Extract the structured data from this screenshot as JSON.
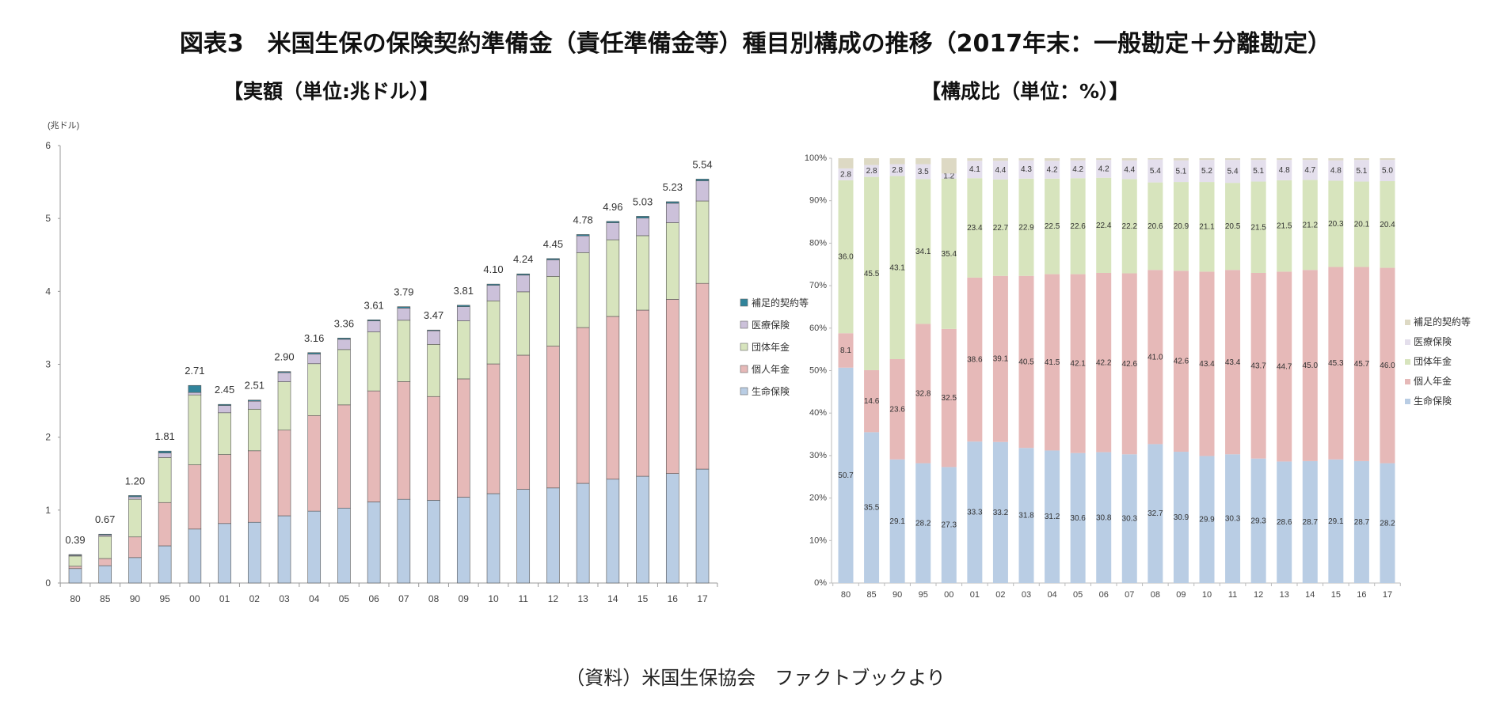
{
  "title": "図表3　米国生保の保険契約準備金（責任準備金等）種目別構成の推移（2017年末：一般勘定＋分離勘定）",
  "source": "（資料）米国生保協会　ファクトブックより",
  "chart_data": [
    {
      "type": "bar",
      "stacked": true,
      "title": "【実額（単位:兆ドル）】",
      "unit_label": "(兆ドル)",
      "xlabel": "",
      "ylabel": "兆ドル",
      "ylim": [
        0,
        6
      ],
      "yticks": [
        "0",
        "1",
        "2",
        "3",
        "4",
        "5",
        "6"
      ],
      "grid": false,
      "legend": "right",
      "categories": [
        "80",
        "85",
        "90",
        "95",
        "00",
        "01",
        "02",
        "03",
        "04",
        "05",
        "06",
        "07",
        "08",
        "09",
        "10",
        "11",
        "12",
        "13",
        "14",
        "15",
        "16",
        "17"
      ],
      "totals": [
        0.39,
        0.67,
        1.2,
        1.81,
        2.71,
        2.45,
        2.51,
        2.9,
        3.16,
        3.36,
        3.61,
        3.79,
        3.47,
        3.81,
        4.1,
        4.24,
        4.45,
        4.78,
        4.96,
        5.03,
        5.23,
        5.54
      ],
      "total_labels": [
        "0.39",
        "0.67",
        "1.20",
        "1.81",
        "2.71",
        "2.45",
        "2.51",
        "2.90",
        "3.16",
        "3.36",
        "3.61",
        "3.79",
        "3.47",
        "3.81",
        "4.10",
        "4.24",
        "4.45",
        "4.78",
        "4.96",
        "5.03",
        "5.23",
        "5.54"
      ],
      "series": [
        {
          "name": "生命保険",
          "color": "#b9cde4",
          "values": [
            0.198,
            0.238,
            0.349,
            0.51,
            0.74,
            0.816,
            0.833,
            0.922,
            0.986,
            1.028,
            1.112,
            1.148,
            1.135,
            1.177,
            1.226,
            1.285,
            1.304,
            1.367,
            1.424,
            1.464,
            1.501,
            1.562
          ]
        },
        {
          "name": "個人年金",
          "color": "#e6b9b8",
          "values": [
            0.032,
            0.098,
            0.283,
            0.594,
            0.881,
            0.946,
            0.981,
            1.175,
            1.311,
            1.415,
            1.523,
            1.615,
            1.423,
            1.623,
            1.779,
            1.84,
            1.945,
            2.137,
            2.232,
            2.279,
            2.39,
            2.548
          ]
        },
        {
          "name": "団体年金",
          "color": "#d7e4bd",
          "values": [
            0.14,
            0.305,
            0.517,
            0.617,
            0.959,
            0.573,
            0.57,
            0.664,
            0.711,
            0.759,
            0.809,
            0.841,
            0.715,
            0.796,
            0.865,
            0.869,
            0.957,
            1.028,
            1.052,
            1.021,
            1.051,
            1.13
          ]
        },
        {
          "name": "医療保険",
          "color": "#ccc1da",
          "values": [
            0.011,
            0.019,
            0.034,
            0.063,
            0.033,
            0.1,
            0.11,
            0.125,
            0.133,
            0.141,
            0.152,
            0.167,
            0.187,
            0.194,
            0.213,
            0.229,
            0.227,
            0.229,
            0.233,
            0.241,
            0.267,
            0.277
          ]
        },
        {
          "name": "補足的契約等",
          "color": "#31849b",
          "values": [
            0.009,
            0.01,
            0.017,
            0.026,
            0.097,
            0.015,
            0.015,
            0.014,
            0.019,
            0.017,
            0.014,
            0.019,
            0.01,
            0.02,
            0.017,
            0.017,
            0.017,
            0.019,
            0.019,
            0.025,
            0.021,
            0.023
          ]
        }
      ]
    },
    {
      "type": "bar",
      "stacked": true,
      "percent": true,
      "title": "【構成比（単位：%）】",
      "xlabel": "",
      "ylabel": "%",
      "ylim": [
        0,
        100
      ],
      "yticks": [
        "0%",
        "10%",
        "20%",
        "30%",
        "40%",
        "50%",
        "60%",
        "70%",
        "80%",
        "90%",
        "100%"
      ],
      "grid": false,
      "legend": "right",
      "categories": [
        "80",
        "85",
        "90",
        "95",
        "00",
        "01",
        "02",
        "03",
        "04",
        "05",
        "06",
        "07",
        "08",
        "09",
        "10",
        "11",
        "12",
        "13",
        "14",
        "15",
        "16",
        "17"
      ],
      "series": [
        {
          "name": "生命保険",
          "color": "#b9cde4",
          "values": [
            50.7,
            35.5,
            29.1,
            28.2,
            27.3,
            33.3,
            33.2,
            31.8,
            31.2,
            30.6,
            30.8,
            30.3,
            32.7,
            30.9,
            29.9,
            30.3,
            29.3,
            28.6,
            28.7,
            29.1,
            28.7,
            28.2
          ],
          "labels": [
            "50.7",
            "35.5",
            "29.1",
            "28.2",
            "27.3",
            "33.3",
            "33.2",
            "31.8",
            "31.2",
            "30.6",
            "30.8",
            "30.3",
            "32.7",
            "30.9",
            "29.9",
            "30.3",
            "29.3",
            "28.6",
            "28.7",
            "29.1",
            "28.7",
            "28.2"
          ]
        },
        {
          "name": "個人年金",
          "color": "#e6b9b8",
          "values": [
            8.1,
            14.6,
            23.6,
            32.8,
            32.5,
            38.6,
            39.1,
            40.5,
            41.5,
            42.1,
            42.2,
            42.6,
            41.0,
            42.6,
            43.4,
            43.4,
            43.7,
            44.7,
            45.0,
            45.3,
            45.7,
            46.0
          ],
          "labels": [
            "8.1",
            "14.6",
            "23.6",
            "32.8",
            "32.5",
            "38.6",
            "39.1",
            "40.5",
            "41.5",
            "42.1",
            "42.2",
            "42.6",
            "41.0",
            "42.6",
            "43.4",
            "43.4",
            "43.7",
            "44.7",
            "45.0",
            "45.3",
            "45.7",
            "46.0"
          ]
        },
        {
          "name": "団体年金",
          "color": "#d7e4bd",
          "values": [
            36.0,
            45.5,
            43.1,
            34.1,
            35.4,
            23.4,
            22.7,
            22.9,
            22.5,
            22.6,
            22.4,
            22.2,
            20.6,
            20.9,
            21.1,
            20.5,
            21.5,
            21.5,
            21.2,
            20.3,
            20.1,
            20.4
          ],
          "labels": [
            "36.0",
            "45.5",
            "43.1",
            "34.1",
            "35.4",
            "23.4",
            "22.7",
            "22.9",
            "22.5",
            "22.6",
            "22.4",
            "22.2",
            "20.6",
            "20.9",
            "21.1",
            "20.5",
            "21.5",
            "21.5",
            "21.2",
            "20.3",
            "20.1",
            "20.4"
          ]
        },
        {
          "name": "医療保険",
          "color": "#e4dfec",
          "values": [
            2.8,
            2.8,
            2.8,
            3.5,
            1.2,
            4.1,
            4.4,
            4.3,
            4.2,
            4.2,
            4.2,
            4.4,
            5.4,
            5.1,
            5.2,
            5.4,
            5.1,
            4.8,
            4.7,
            4.8,
            5.1,
            5.0
          ],
          "labels": [
            "2.8",
            "2.8",
            "2.8",
            "3.5",
            "1.2",
            "4.1",
            "4.4",
            "4.3",
            "4.2",
            "4.2",
            "4.2",
            "4.4",
            "5.4",
            "5.1",
            "5.2",
            "5.4",
            "5.1",
            "4.8",
            "4.7",
            "4.8",
            "5.1",
            "5.0"
          ]
        },
        {
          "name": "補足的契約等",
          "color": "#ddd9c4",
          "values": [
            2.4,
            1.6,
            1.4,
            1.4,
            3.6,
            0.6,
            0.6,
            0.5,
            0.6,
            0.5,
            0.4,
            0.5,
            0.3,
            0.5,
            0.4,
            0.4,
            0.4,
            0.4,
            0.4,
            0.5,
            0.4,
            0.4
          ],
          "labels": []
        }
      ]
    }
  ]
}
